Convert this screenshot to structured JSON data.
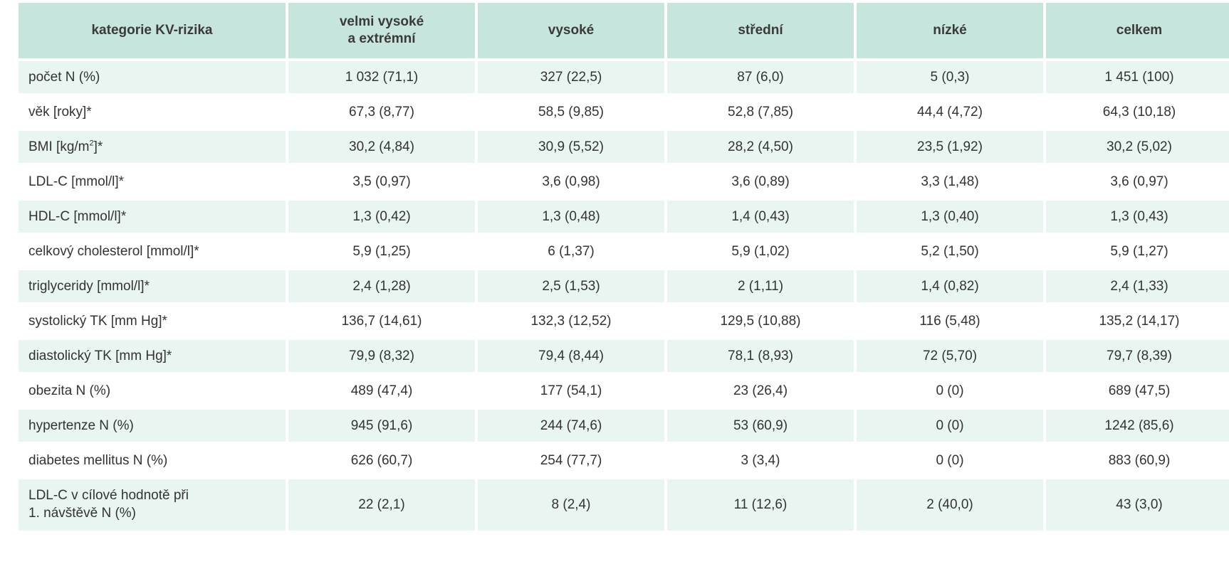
{
  "table": {
    "headers": [
      "kategorie KV-rizika",
      "velmi vysoké\na extrémní",
      "vysoké",
      "střední",
      "nízké",
      "celkem"
    ],
    "rows": [
      [
        "počet N (%)",
        "1 032 (71,1)",
        "327 (22,5)",
        "87 (6,0)",
        "5 (0,3)",
        "1 451 (100)"
      ],
      [
        "věk [roky]*",
        "67,3 (8,77)",
        "58,5 (9,85)",
        "52,8 (7,85)",
        "44,4 (4,72)",
        "64,3 (10,18)"
      ],
      [
        "BMI [kg/m²]*",
        "30,2 (4,84)",
        "30,9 (5,52)",
        "28,2 (4,50)",
        "23,5 (1,92)",
        "30,2 (5,02)"
      ],
      [
        "LDL-C [mmol/l]*",
        "3,5 (0,97)",
        "3,6 (0,98)",
        "3,6 (0,89)",
        "3,3 (1,48)",
        "3,6 (0,97)"
      ],
      [
        "HDL-C [mmol/l]*",
        "1,3 (0,42)",
        "1,3 (0,48)",
        "1,4 (0,43)",
        "1,3 (0,40)",
        "1,3 (0,43)"
      ],
      [
        "celkový cholesterol [mmol/l]*",
        "5,9 (1,25)",
        "6 (1,37)",
        "5,9 (1,02)",
        "5,2 (1,50)",
        "5,9 (1,27)"
      ],
      [
        "triglyceridy [mmol/l]*",
        "2,4 (1,28)",
        "2,5 (1,53)",
        "2 (1,11)",
        "1,4 (0,82)",
        "2,4 (1,33)"
      ],
      [
        "systolický TK [mm Hg]*",
        "136,7 (14,61)",
        "132,3 (12,52)",
        "129,5 (10,88)",
        "116 (5,48)",
        "135,2 (14,17)"
      ],
      [
        "diastolický TK [mm Hg]*",
        "79,9 (8,32)",
        "79,4 (8,44)",
        "78,1 (8,93)",
        "72 (5,70)",
        "79,7 (8,39)"
      ],
      [
        "obezita N (%)",
        "489 (47,4)",
        "177 (54,1)",
        "23 (26,4)",
        "0 (0)",
        "689 (47,5)"
      ],
      [
        "hypertenze N (%)",
        "945 (91,6)",
        "244 (74,6)",
        "53 (60,9)",
        "0 (0)",
        "1242 (85,6)"
      ],
      [
        "diabetes mellitus N (%)",
        "626 (60,7)",
        "254 (77,7)",
        "3 (3,4)",
        "0 (0)",
        "883 (60,9)"
      ],
      [
        "LDL-C v cílové hodnotě při\n1. návštěvě N (%)",
        "22 (2,1)",
        "8 (2,4)",
        "11 (12,6)",
        "2 (40,0)",
        "43 (3,0)"
      ]
    ]
  },
  "colors": {
    "header_bg": "#c6e5dd",
    "stripe_bg": "#e9f5f1",
    "text": "#333333"
  }
}
